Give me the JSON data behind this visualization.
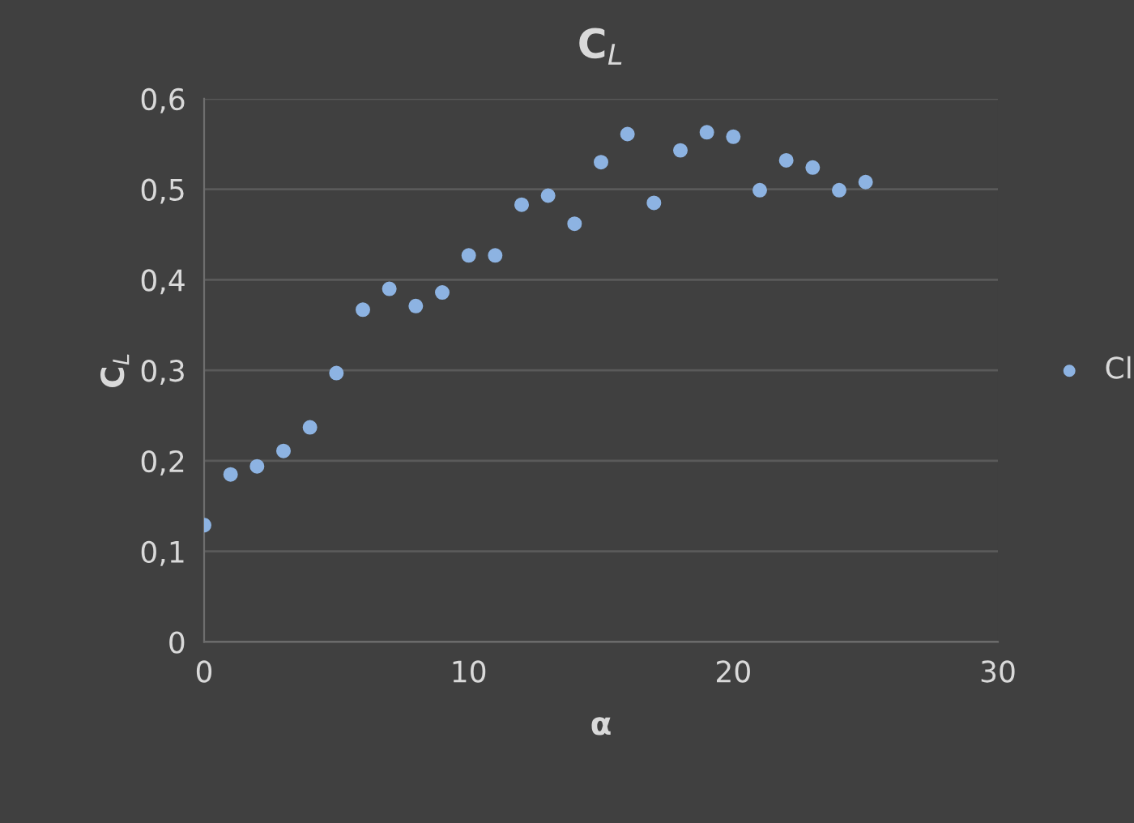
{
  "chart_data": {
    "type": "scatter",
    "title": "C$_{L}$",
    "xlabel": "α",
    "ylabel": "C$_{L}$",
    "x": [
      0,
      1,
      2,
      3,
      4,
      5,
      6,
      7,
      8,
      9,
      10,
      11,
      12,
      13,
      14,
      15,
      16,
      17,
      18,
      19,
      20,
      21,
      22,
      23,
      24,
      25
    ],
    "series": [
      {
        "name": "Cl",
        "color": "#8db3e2",
        "values": [
          0.129,
          0.185,
          0.194,
          0.211,
          0.237,
          0.297,
          0.367,
          0.39,
          0.371,
          0.386,
          0.427,
          0.427,
          0.483,
          0.493,
          0.462,
          0.53,
          0.561,
          0.485,
          0.543,
          0.563,
          0.558,
          0.499,
          0.532,
          0.524,
          0.499,
          0.508
        ]
      }
    ],
    "xlim": [
      0,
      30
    ],
    "xticks": [
      0,
      10,
      20,
      30
    ],
    "ylim": [
      0,
      0.6
    ],
    "yticks": [
      {
        "value": 0,
        "label": "0"
      },
      {
        "value": 0.1,
        "label": "0,1"
      },
      {
        "value": 0.2,
        "label": "0,2"
      },
      {
        "value": 0.3,
        "label": "0,3"
      },
      {
        "value": 0.4,
        "label": "0,4"
      },
      {
        "value": 0.5,
        "label": "0,5"
      },
      {
        "value": 0.6,
        "label": "0,6"
      }
    ],
    "grid": "y",
    "legend": "right",
    "marker": "circle"
  }
}
